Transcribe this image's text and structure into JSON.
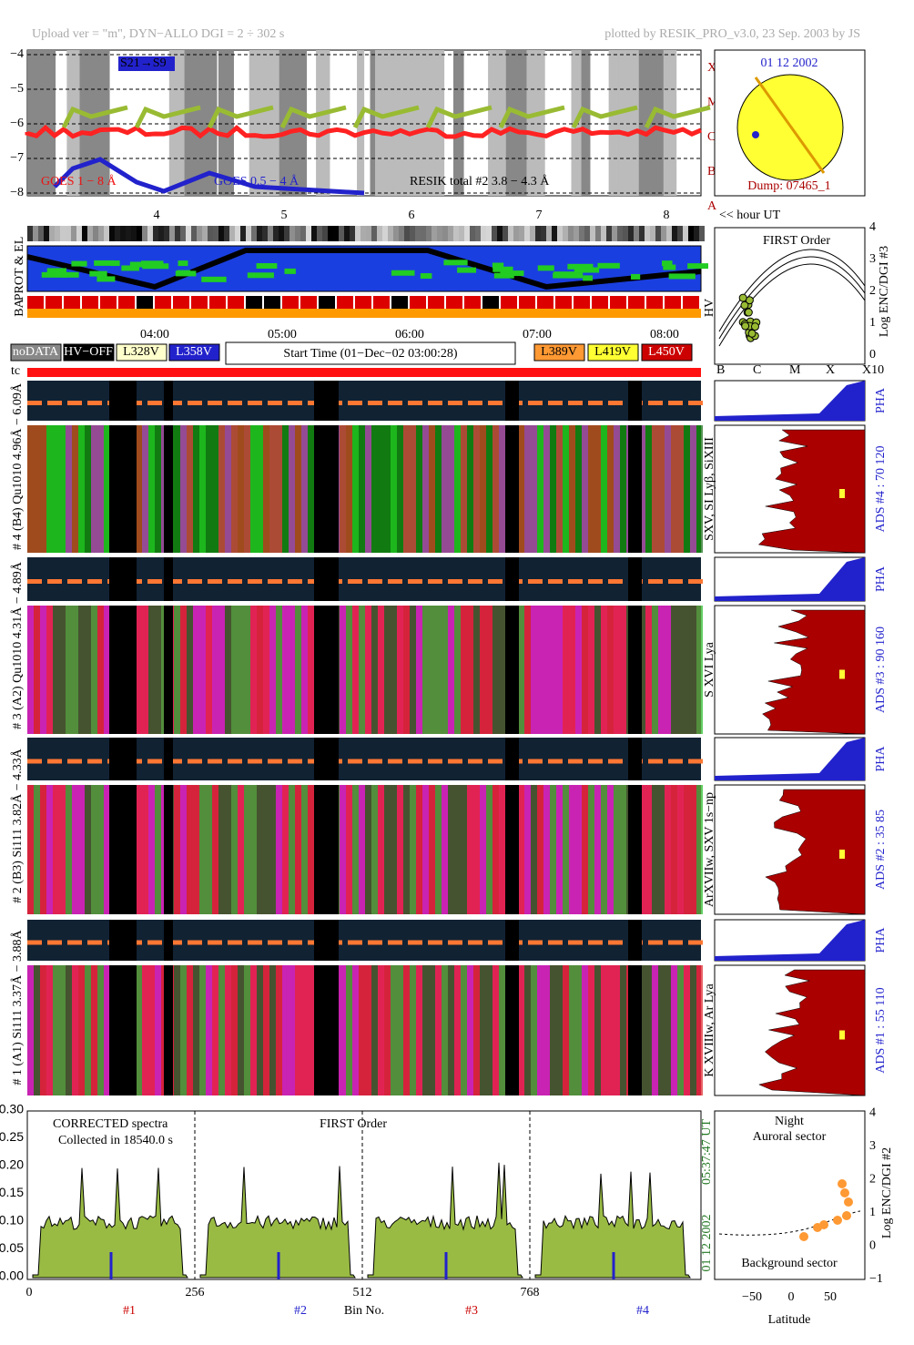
{
  "header": {
    "left": "Upload ver = \"m\", DYN−ALLO DGI =   2 ÷ 302 s",
    "right": "plotted by RESIK_PRO_v3.0, 23 Sep. 2003 by JS"
  },
  "goes_panel": {
    "yticks": [
      "−4",
      "−5",
      "−6",
      "−7",
      "−8"
    ],
    "class_labels": [
      "X",
      "M",
      "C",
      "B",
      "A"
    ],
    "legend": [
      "GOES 1 − 8 Å",
      "GOES 0.5 − 4 Å",
      "RESIK total #2  3.8 − 4.3 Å"
    ],
    "tag": "S21→S9",
    "hour_ticks": [
      "4",
      "5",
      "6",
      "7",
      "8"
    ]
  },
  "sun_panel": {
    "date": "01 12 2002",
    "dump": "Dump: 07465_1",
    "hour_label": "<< hour UT"
  },
  "orbit_panel": {
    "labels": [
      "PROT & EL",
      "BA",
      "HV"
    ],
    "time_ticks": [
      "04:00",
      "05:00",
      "06:00",
      "07:00",
      "08:00"
    ]
  },
  "legend_row": {
    "left": [
      "noDATA",
      "HV−OFF",
      "L328V",
      "L358V"
    ],
    "start_time": "Start Time (01−Dec−02 03:00:28)",
    "right": [
      "L389V",
      "L419V",
      "L450V"
    ],
    "tc": "tc"
  },
  "first_order": {
    "title": "FIRST Order",
    "ylabel": "Log ENC/DGI #3",
    "yticks": [
      "0",
      "1",
      "2",
      "3",
      "4"
    ],
    "xticks": [
      "B",
      "C",
      "M",
      "X",
      "X10"
    ]
  },
  "channels": [
    {
      "left_label": "# 4 (B4) Qu1010 4.96Å − 6.09Å",
      "lines": "SXV, SI Lyβ, SiXIII",
      "pha": "PHA",
      "ads": "ADS #4 :   70 120"
    },
    {
      "left_label": "# 3 (A2) Qu1010 4.31Å − 4.89Å",
      "lines": "S XVI Lya",
      "pha": "PHA",
      "ads": "ADS #3 :   90 160"
    },
    {
      "left_label": "# 2 (B3) Si111 3.82Å − 4.33Å",
      "lines": "ArXVIIw, SXV 1s−np",
      "pha": "PHA",
      "ads": "ADS #2 :   35  85"
    },
    {
      "left_label": "# 1 (A1) Si111 3.37Å − 3.88Å",
      "lines": "K XVIIIw, Ar Lya",
      "pha": "PHA",
      "ads": "ADS #1 :   55 110"
    }
  ],
  "spectrum": {
    "yticks": [
      "0.00",
      "0.05",
      "0.10",
      "0.15",
      "0.20",
      "0.25",
      "0.30"
    ],
    "note1": "CORRECTED spectra",
    "note2": "Collected in 18540.0 s",
    "order": "FIRST Order",
    "xticks": [
      "0",
      "256",
      "512",
      "768"
    ],
    "xlabel": "Bin No.",
    "channels": [
      "#1",
      "#2",
      "#3",
      "#4"
    ],
    "time": "05:37:47 UT",
    "date": "01 12 2002"
  },
  "latitude": {
    "top1": "Night",
    "top2": "Auroral sector",
    "bottom": "Background sector",
    "xticks": [
      "−50",
      "0",
      "50"
    ],
    "xlabel": "Latitude",
    "yticks": [
      "−1",
      "0",
      "1",
      "2",
      "3",
      "4"
    ],
    "ylabel": "Log ENC/DGI #2"
  }
}
